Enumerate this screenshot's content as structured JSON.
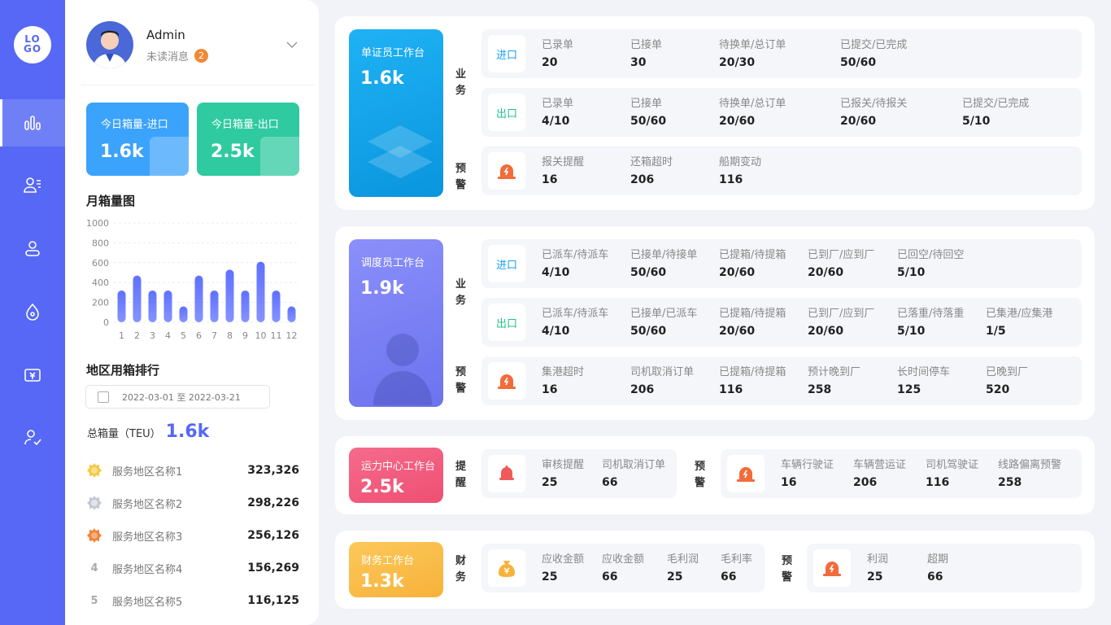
{
  "logo": "LO GO",
  "user": {
    "name": "Admin",
    "unread_label": "未读消息",
    "unread_count": "2"
  },
  "today": {
    "import": {
      "title": "今日箱量-进口",
      "value": "1.6k",
      "color": "#3ba3fb"
    },
    "export": {
      "title": "今日箱量-出口",
      "value": "2.5k",
      "color": "#2fcaa0"
    }
  },
  "monthly": {
    "title": "月箱量图"
  },
  "chart_data": {
    "type": "bar",
    "categories": [
      "1",
      "2",
      "3",
      "4",
      "5",
      "6",
      "7",
      "8",
      "9",
      "10",
      "11",
      "12"
    ],
    "values": [
      320,
      470,
      320,
      320,
      160,
      470,
      320,
      530,
      320,
      610,
      320,
      160
    ],
    "ylim": [
      0,
      1000
    ],
    "yticks": [
      "1000",
      "800",
      "600",
      "400",
      "200",
      "0"
    ],
    "grid": true,
    "color": "#5668f5"
  },
  "region": {
    "title": "地区用箱排行",
    "date_range": "2022-03-01  至  2022-03-21",
    "total_label": "总箱量（TEU）",
    "total_value": "1.6k",
    "items": [
      {
        "rank": "1",
        "name": "服务地区名称1",
        "value": "323,326"
      },
      {
        "rank": "2",
        "name": "服务地区名称2",
        "value": "298,226"
      },
      {
        "rank": "3",
        "name": "服务地区名称3",
        "value": "256,126"
      },
      {
        "rank": "4",
        "name": "服务地区名称4",
        "value": "156,269"
      },
      {
        "rank": "5",
        "name": "服务地区名称5",
        "value": "116,125"
      }
    ]
  },
  "doc_desk": {
    "title": "单证员工作台",
    "value": "1.6k",
    "biz_label": "业务",
    "warn_label": "预警",
    "import_tag": "进口",
    "export_tag": "出口",
    "import": [
      {
        "k": "已录单",
        "v": "20"
      },
      {
        "k": "已接单",
        "v": "30"
      },
      {
        "k": "待换单/总订单",
        "v": "20/30"
      },
      {
        "k": "已提交/已完成",
        "v": "50/60"
      }
    ],
    "export": [
      {
        "k": "已录单",
        "v": "4/10"
      },
      {
        "k": "已接单",
        "v": "50/60"
      },
      {
        "k": "待换单/总订单",
        "v": "20/60"
      },
      {
        "k": "已报关/待报关",
        "v": "20/60"
      },
      {
        "k": "已提交/已完成",
        "v": "5/10"
      }
    ],
    "warn": [
      {
        "k": "报关提醒",
        "v": "16"
      },
      {
        "k": "还箱超时",
        "v": "206"
      },
      {
        "k": "船期变动",
        "v": "116"
      }
    ]
  },
  "dispatch_desk": {
    "title": "调度员工作台",
    "value": "1.9k",
    "biz_label": "业务",
    "warn_label": "预警",
    "import_tag": "进口",
    "export_tag": "出口",
    "import": [
      {
        "k": "已派车/待派车",
        "v": "4/10"
      },
      {
        "k": "已接单/待接单",
        "v": "50/60"
      },
      {
        "k": "已提箱/待提箱",
        "v": "20/60"
      },
      {
        "k": "已到厂/应到厂",
        "v": "20/60"
      },
      {
        "k": "已回空/待回空",
        "v": "5/10"
      }
    ],
    "export": [
      {
        "k": "已派车/待派车",
        "v": "4/10"
      },
      {
        "k": "已接单/已派车",
        "v": "50/60"
      },
      {
        "k": "已提箱/待提箱",
        "v": "20/60"
      },
      {
        "k": "已到厂/应到厂",
        "v": "20/60"
      },
      {
        "k": "已落重/待落重",
        "v": "5/10"
      },
      {
        "k": "已集港/应集港",
        "v": "1/5"
      }
    ],
    "warn": [
      {
        "k": "集港超时",
        "v": "16"
      },
      {
        "k": "司机取消订单",
        "v": "206"
      },
      {
        "k": "已提箱/待提箱",
        "v": "116"
      },
      {
        "k": "预计晚到厂",
        "v": "258"
      },
      {
        "k": "长时间停车",
        "v": "125"
      },
      {
        "k": "已晚到厂",
        "v": "520"
      }
    ]
  },
  "transport_desk": {
    "title": "运力中心工作台",
    "value": "2.5k",
    "remind_label": "提醒",
    "warn_label": "预警",
    "remind": [
      {
        "k": "审核提醒",
        "v": "25"
      },
      {
        "k": "司机取消订单",
        "v": "66"
      }
    ],
    "warn": [
      {
        "k": "车辆行驶证",
        "v": "16"
      },
      {
        "k": "车辆营运证",
        "v": "206"
      },
      {
        "k": "司机驾驶证",
        "v": "116"
      },
      {
        "k": "线路偏离预警",
        "v": "258"
      }
    ]
  },
  "finance_desk": {
    "title": "财务工作台",
    "value": "1.3k",
    "fin_label": "财务",
    "warn_label": "预警",
    "fin": [
      {
        "k": "应收金额",
        "v": "25"
      },
      {
        "k": "应收金额",
        "v": "66"
      },
      {
        "k": "毛利润",
        "v": "25"
      },
      {
        "k": "毛利率",
        "v": "66"
      }
    ],
    "warn": [
      {
        "k": "利润",
        "v": "25"
      },
      {
        "k": "超期",
        "v": "66"
      }
    ]
  }
}
